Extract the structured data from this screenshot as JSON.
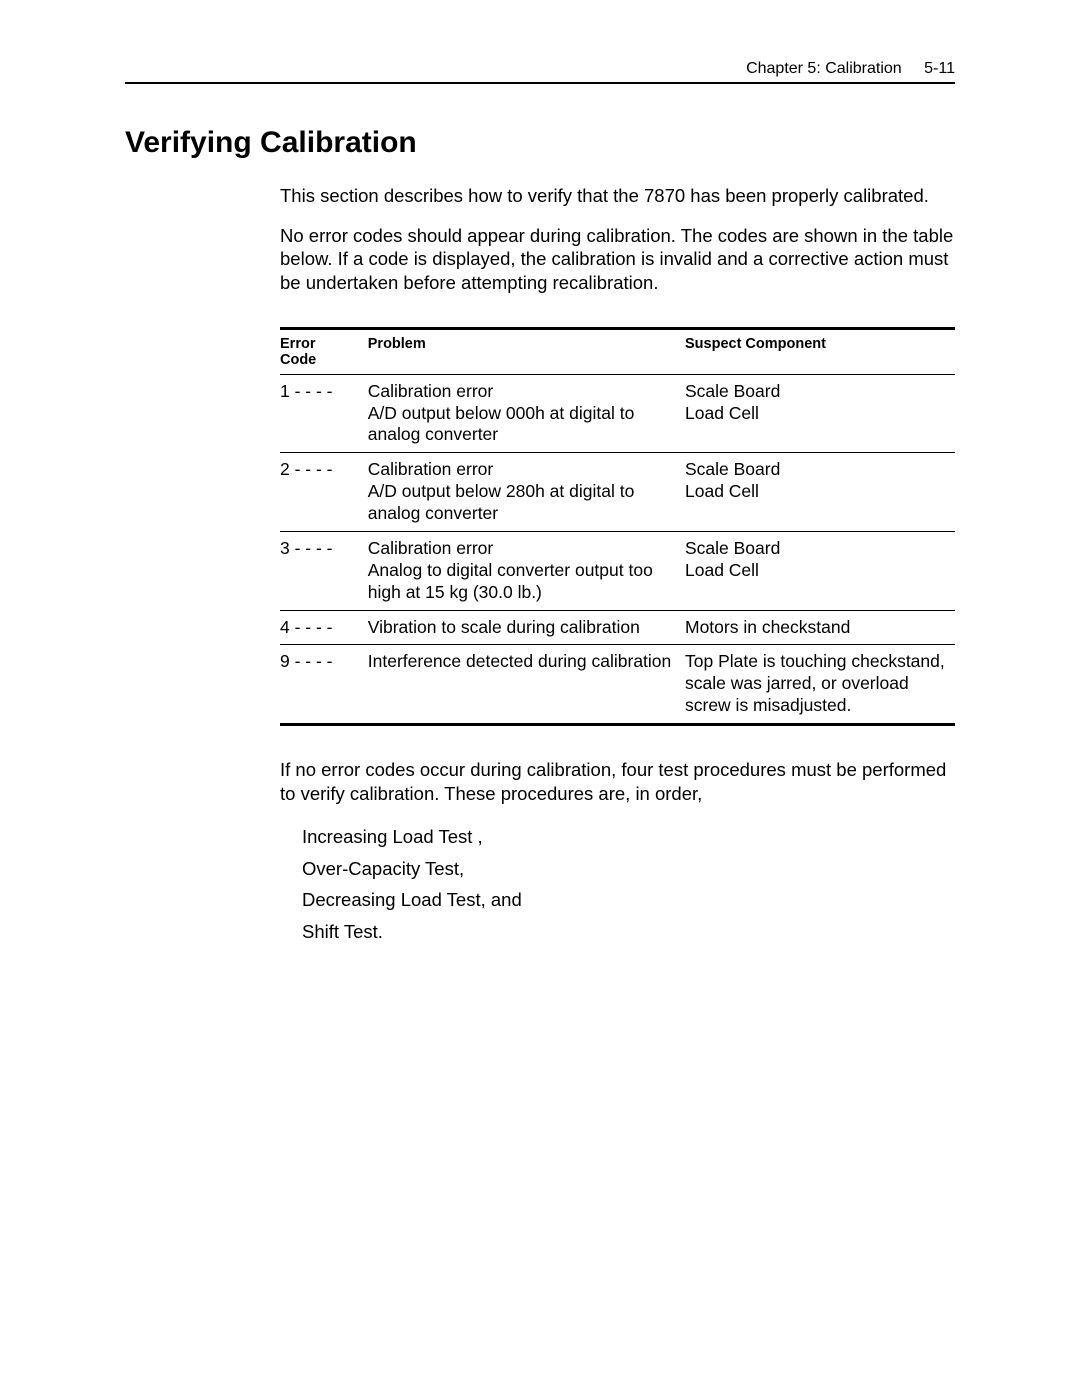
{
  "header": {
    "chapter": "Chapter 5:  Calibration",
    "page_number": "5-11"
  },
  "title": "Verifying Calibration",
  "paragraphs": {
    "p1": "This section describes how to verify that the 7870 has been properly calibrated.",
    "p2": "No error codes should appear during calibration.  The codes are shown in the table below.  If a code is displayed, the calibration is invalid and a corrective action must be undertaken before attempting recalibration.",
    "p3": "If no error codes occur during calibration, four test procedures must be performed to verify calibration.  These procedures are, in order,"
  },
  "table": {
    "headers": {
      "code": "Error Code",
      "problem": "Problem",
      "suspect": "Suspect Component"
    },
    "rows": [
      {
        "code": "1 - - - -",
        "problem_line1": "Calibration error",
        "problem_rest": "A/D output below 000h at digital to analog converter",
        "suspect_line1": "Scale Board",
        "suspect_rest": "Load Cell"
      },
      {
        "code": "2 - - - -",
        "problem_line1": "Calibration error",
        "problem_rest": "A/D output below 280h at digital to analog converter",
        "suspect_line1": "Scale Board",
        "suspect_rest": "Load Cell"
      },
      {
        "code": "3 - - - -",
        "problem_line1": "Calibration error",
        "problem_rest": "Analog to digital converter output too high at 15 kg (30.0 lb.)",
        "suspect_line1": "Scale Board",
        "suspect_rest": "Load Cell"
      },
      {
        "code": "4 - - - -",
        "problem_line1": "Vibration to scale during calibration",
        "problem_rest": "",
        "suspect_line1": "Motors in checkstand",
        "suspect_rest": ""
      },
      {
        "code": "9 - - - -",
        "problem_line1": "Interference detected during calibration",
        "problem_rest": "",
        "suspect_line1": "Top Plate is touching checkstand, scale was jarred, or overload screw is misadjusted.",
        "suspect_rest": ""
      }
    ]
  },
  "procedures": [
    "Increasing Load Test ,",
    "Over-Capacity Test,",
    "Decreasing Load Test, and",
    "Shift Test."
  ]
}
